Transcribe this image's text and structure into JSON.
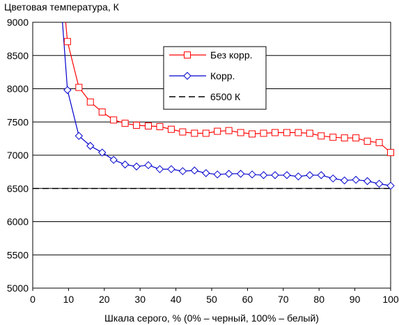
{
  "chart_data": {
    "type": "line",
    "title": "",
    "ylabel": "Цветовая температура, К",
    "xlabel": "Шкала серого, % (0% – черный, 100% – белый)",
    "xlim": [
      0,
      100
    ],
    "ylim": [
      5000,
      9000
    ],
    "xticks": [
      0,
      10,
      20,
      30,
      40,
      50,
      60,
      70,
      80,
      90,
      100
    ],
    "yticks": [
      5000,
      5500,
      6000,
      6500,
      7000,
      7500,
      8000,
      8500,
      9000
    ],
    "grid": "horizontal",
    "legend_position": "top-right",
    "series": [
      {
        "name": "Без корр.",
        "color": "#ff0000",
        "marker": "square",
        "line_extends_to": [
          9.2,
          9000
        ],
        "x": [
          9.7,
          12.9,
          16.1,
          19.4,
          22.6,
          25.8,
          29.0,
          32.3,
          35.5,
          38.7,
          41.9,
          45.2,
          48.4,
          51.6,
          54.8,
          58.1,
          61.3,
          64.5,
          67.7,
          71.0,
          74.2,
          77.4,
          80.6,
          83.9,
          87.1,
          90.3,
          93.5,
          96.8,
          100
        ],
        "values": [
          8710,
          8020,
          7800,
          7650,
          7530,
          7480,
          7450,
          7440,
          7430,
          7390,
          7350,
          7330,
          7330,
          7360,
          7370,
          7340,
          7320,
          7330,
          7340,
          7340,
          7340,
          7330,
          7290,
          7270,
          7260,
          7260,
          7210,
          7190,
          7040
        ]
      },
      {
        "name": "Корр.",
        "color": "#0000cc",
        "marker": "diamond",
        "line_extends_to": [
          8.3,
          9000
        ],
        "x": [
          9.7,
          12.9,
          16.1,
          19.4,
          22.6,
          25.8,
          29.0,
          32.3,
          35.5,
          38.7,
          41.9,
          45.2,
          48.4,
          51.6,
          54.8,
          58.1,
          61.3,
          64.5,
          67.7,
          71.0,
          74.2,
          77.4,
          80.6,
          83.9,
          87.1,
          90.3,
          93.5,
          96.8,
          100
        ],
        "values": [
          7980,
          7290,
          7140,
          7040,
          6930,
          6860,
          6830,
          6850,
          6790,
          6790,
          6760,
          6770,
          6730,
          6710,
          6720,
          6720,
          6710,
          6700,
          6700,
          6700,
          6680,
          6700,
          6700,
          6650,
          6620,
          6630,
          6610,
          6570,
          6540
        ]
      },
      {
        "name": "6500 К",
        "color": "#000000",
        "style": "dashed",
        "x": [
          0,
          100
        ],
        "values": [
          6500,
          6500
        ]
      }
    ]
  }
}
